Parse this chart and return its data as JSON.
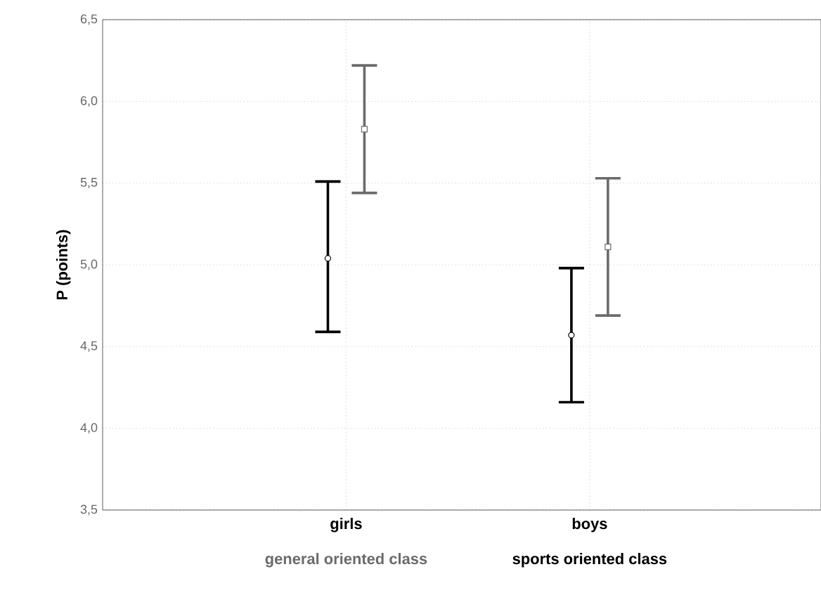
{
  "chart_data": {
    "type": "scatter",
    "ylabel": "P (points)",
    "categories": [
      "girls",
      "boys"
    ],
    "series": [
      {
        "name": "general oriented class",
        "color": "#6b6b6b",
        "marker": "square",
        "values": [
          5.83,
          5.11
        ],
        "errors": [
          [
            5.44,
            6.22
          ],
          [
            4.69,
            5.53
          ]
        ]
      },
      {
        "name": "sports oriented class",
        "color": "#000000",
        "marker": "circle",
        "values": [
          5.04,
          4.57
        ],
        "errors": [
          [
            4.59,
            5.51
          ],
          [
            4.16,
            4.98
          ]
        ]
      }
    ],
    "ylim": [
      3.5,
      6.5
    ],
    "yticks": [
      {
        "value": 3.5,
        "label": "3,5"
      },
      {
        "value": 4.0,
        "label": "4,0"
      },
      {
        "value": 4.5,
        "label": "4,5"
      },
      {
        "value": 5.0,
        "label": "5,0"
      },
      {
        "value": 5.5,
        "label": "5,5"
      },
      {
        "value": 6.0,
        "label": "6,0"
      },
      {
        "value": 6.5,
        "label": "6,5"
      }
    ],
    "grid": true,
    "legend": "bottom"
  }
}
